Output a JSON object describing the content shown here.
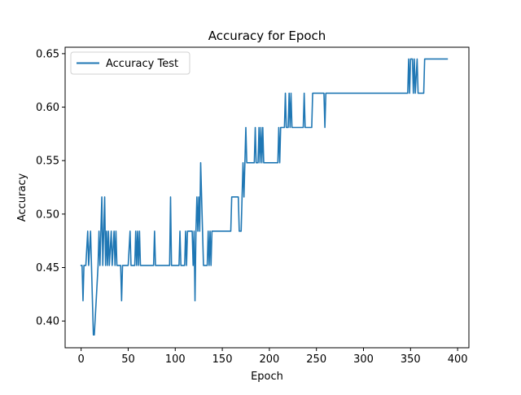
{
  "chart_data": {
    "type": "line",
    "title": "Accuracy for Epoch",
    "xlabel": "Epoch",
    "ylabel": "Accuracy",
    "xlim": [
      -17,
      412
    ],
    "ylim": [
      0.375,
      0.656
    ],
    "xticks": [
      0,
      50,
      100,
      150,
      200,
      250,
      300,
      350,
      400
    ],
    "xtick_labels": [
      "0",
      "50",
      "100",
      "150",
      "200",
      "250",
      "300",
      "350",
      "400"
    ],
    "yticks": [
      0.4,
      0.45,
      0.5,
      0.55,
      0.6,
      0.65
    ],
    "ytick_labels": [
      "0.40",
      "0.45",
      "0.50",
      "0.55",
      "0.60",
      "0.65"
    ],
    "grid": false,
    "legend_position": "top-left",
    "series": [
      {
        "name": "Accuracy Test",
        "color": "#1f77b4",
        "points": [
          [
            0,
            0.452
          ],
          [
            1,
            0.452
          ],
          [
            2,
            0.419
          ],
          [
            3,
            0.452
          ],
          [
            5,
            0.452
          ],
          [
            7,
            0.484
          ],
          [
            8,
            0.452
          ],
          [
            10,
            0.484
          ],
          [
            11,
            0.452
          ],
          [
            13,
            0.387
          ],
          [
            14,
            0.387
          ],
          [
            16,
            0.419
          ],
          [
            18,
            0.452
          ],
          [
            19,
            0.484
          ],
          [
            20,
            0.452
          ],
          [
            22,
            0.516
          ],
          [
            23,
            0.452
          ],
          [
            24,
            0.484
          ],
          [
            25,
            0.516
          ],
          [
            26,
            0.452
          ],
          [
            27,
            0.484
          ],
          [
            28,
            0.452
          ],
          [
            29,
            0.484
          ],
          [
            30,
            0.452
          ],
          [
            32,
            0.484
          ],
          [
            33,
            0.452
          ],
          [
            35,
            0.484
          ],
          [
            36,
            0.452
          ],
          [
            37,
            0.484
          ],
          [
            38,
            0.452
          ],
          [
            42,
            0.452
          ],
          [
            43,
            0.419
          ],
          [
            44,
            0.452
          ],
          [
            50,
            0.452
          ],
          [
            52,
            0.484
          ],
          [
            53,
            0.452
          ],
          [
            57,
            0.452
          ],
          [
            58,
            0.484
          ],
          [
            59,
            0.452
          ],
          [
            60,
            0.484
          ],
          [
            61,
            0.452
          ],
          [
            62,
            0.484
          ],
          [
            63,
            0.452
          ],
          [
            77,
            0.452
          ],
          [
            78,
            0.484
          ],
          [
            79,
            0.452
          ],
          [
            94,
            0.452
          ],
          [
            95,
            0.516
          ],
          [
            96,
            0.452
          ],
          [
            104,
            0.452
          ],
          [
            105,
            0.484
          ],
          [
            106,
            0.452
          ],
          [
            110,
            0.452
          ],
          [
            111,
            0.484
          ],
          [
            112,
            0.452
          ],
          [
            113,
            0.484
          ],
          [
            118,
            0.484
          ],
          [
            119,
            0.452
          ],
          [
            120,
            0.484
          ],
          [
            121,
            0.419
          ],
          [
            122,
            0.484
          ],
          [
            123,
            0.516
          ],
          [
            124,
            0.484
          ],
          [
            125,
            0.516
          ],
          [
            126,
            0.484
          ],
          [
            127,
            0.548
          ],
          [
            128,
            0.516
          ],
          [
            129,
            0.484
          ],
          [
            130,
            0.452
          ],
          [
            134,
            0.452
          ],
          [
            135,
            0.484
          ],
          [
            136,
            0.452
          ],
          [
            137,
            0.484
          ],
          [
            138,
            0.452
          ],
          [
            139,
            0.484
          ],
          [
            159,
            0.484
          ],
          [
            160,
            0.516
          ],
          [
            167,
            0.516
          ],
          [
            168,
            0.484
          ],
          [
            170,
            0.484
          ],
          [
            171,
            0.516
          ],
          [
            172,
            0.548
          ],
          [
            173,
            0.516
          ],
          [
            174,
            0.548
          ],
          [
            175,
            0.581
          ],
          [
            176,
            0.548
          ],
          [
            184,
            0.548
          ],
          [
            185,
            0.581
          ],
          [
            186,
            0.548
          ],
          [
            188,
            0.548
          ],
          [
            189,
            0.581
          ],
          [
            190,
            0.548
          ],
          [
            191,
            0.581
          ],
          [
            192,
            0.548
          ],
          [
            193,
            0.581
          ],
          [
            194,
            0.548
          ],
          [
            209,
            0.548
          ],
          [
            210,
            0.581
          ],
          [
            211,
            0.548
          ],
          [
            212,
            0.581
          ],
          [
            216,
            0.581
          ],
          [
            217,
            0.613
          ],
          [
            218,
            0.581
          ],
          [
            220,
            0.581
          ],
          [
            221,
            0.613
          ],
          [
            222,
            0.581
          ],
          [
            223,
            0.613
          ],
          [
            224,
            0.581
          ],
          [
            236,
            0.581
          ],
          [
            237,
            0.613
          ],
          [
            238,
            0.581
          ],
          [
            245,
            0.581
          ],
          [
            246,
            0.613
          ],
          [
            258,
            0.613
          ],
          [
            259,
            0.581
          ],
          [
            260,
            0.613
          ],
          [
            347,
            0.613
          ],
          [
            348,
            0.645
          ],
          [
            349,
            0.613
          ],
          [
            350,
            0.645
          ],
          [
            352,
            0.645
          ],
          [
            353,
            0.613
          ],
          [
            354,
            0.645
          ],
          [
            355,
            0.613
          ],
          [
            357,
            0.645
          ],
          [
            358,
            0.613
          ],
          [
            364,
            0.613
          ],
          [
            365,
            0.645
          ],
          [
            389,
            0.645
          ]
        ]
      }
    ]
  }
}
